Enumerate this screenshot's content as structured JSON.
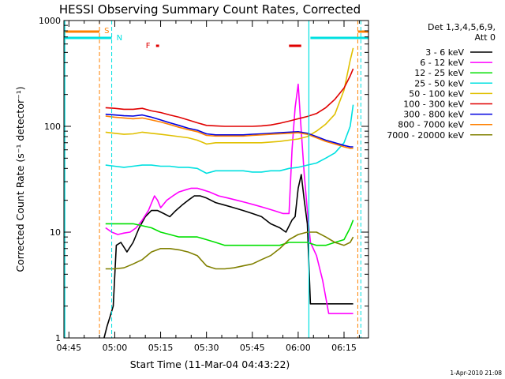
{
  "chart_data": {
    "type": "line",
    "title": "HESSI Observing Summary Count Rates, Corrected",
    "xlabel": "Start Time (11-Mar-04 04:43:22)",
    "ylabel": "Corrected Count Rate (s⁻¹ detector⁻¹)",
    "yscale": "log",
    "xlim": [
      "04:43:22",
      "06:23:00"
    ],
    "ylim": [
      1,
      1000
    ],
    "x_ticks": [
      "04:45",
      "05:00",
      "05:15",
      "05:30",
      "05:45",
      "06:00",
      "06:15"
    ],
    "y_ticks": [
      "1",
      "10",
      "100",
      "1000"
    ],
    "timestamp": "1-Apr-2010 21:08",
    "legend": {
      "placement": "right",
      "header": [
        "Det 1,3,4,5,6,9,",
        "Att 0"
      ]
    },
    "flags": {
      "S_label": "S",
      "N_label": "N",
      "F_label": "F",
      "colors": {
        "S": "#ff8000",
        "N": "#00e0e0",
        "F": "#e00000"
      },
      "S_segments": [
        [
          "04:43:22",
          "04:55:00"
        ],
        [
          "06:19:30",
          "06:23:00"
        ]
      ],
      "N_segments": [
        [
          "04:43:22",
          "04:59:00"
        ],
        [
          "06:04:00",
          "06:23:00"
        ]
      ],
      "F_segments": [
        [
          "05:13:30",
          "05:14:30"
        ],
        [
          "05:57:00",
          "06:01:00"
        ]
      ],
      "S_lines": [
        "04:55:00",
        "06:19:30"
      ],
      "N_lines": [
        "04:59:00",
        "06:20:30"
      ],
      "N_solid_lines": [
        "04:43:40",
        "06:03:30"
      ]
    },
    "series": [
      {
        "name": "3 - 6 keV",
        "color": "#000000",
        "x": [
          "04:56:30",
          "04:57:30",
          "04:58:30",
          "04:59:30",
          "05:00:30",
          "05:02:00",
          "05:04:00",
          "05:06:00",
          "05:08:00",
          "05:10:00",
          "05:12:00",
          "05:14:00",
          "05:16:00",
          "05:18:00",
          "05:20:00",
          "05:22:00",
          "05:24:00",
          "05:26:00",
          "05:28:00",
          "05:30:00",
          "05:33:00",
          "05:36:00",
          "05:39:00",
          "05:42:00",
          "05:45:00",
          "05:48:00",
          "05:51:00",
          "05:54:00",
          "05:56:00",
          "05:58:00",
          "05:59:00",
          "06:00:00",
          "06:01:00",
          "06:02:00",
          "06:03:00",
          "06:04:00",
          "06:06:00",
          "06:08:00",
          "06:10:00",
          "06:12:00",
          "06:14:00",
          "06:16:00",
          "06:17:00",
          "06:18:00"
        ],
        "values": [
          1.0,
          1.3,
          1.6,
          2.0,
          7.5,
          8.0,
          6.5,
          8.0,
          11,
          14,
          16,
          16,
          15,
          14,
          16,
          18,
          20,
          22,
          22,
          21,
          19,
          18,
          17,
          16,
          15,
          14,
          12,
          11,
          10,
          13,
          14,
          26,
          35,
          20,
          12,
          2.1,
          2.1,
          2.1,
          2.1,
          2.1,
          2.1,
          2.1,
          2.1,
          2.1
        ]
      },
      {
        "name": "6 - 12 keV",
        "color": "#ff00ff",
        "x": [
          "04:57:00",
          "04:59:00",
          "05:01:00",
          "05:03:00",
          "05:05:00",
          "05:07:00",
          "05:09:00",
          "05:11:00",
          "05:13:00",
          "05:14:00",
          "05:15:00",
          "05:17:00",
          "05:19:00",
          "05:21:00",
          "05:23:00",
          "05:25:00",
          "05:27:00",
          "05:29:00",
          "05:31:00",
          "05:34:00",
          "05:37:00",
          "05:40:00",
          "05:43:00",
          "05:46:00",
          "05:49:00",
          "05:52:00",
          "05:55:00",
          "05:57:00",
          "05:58:00",
          "05:59:00",
          "06:00:00",
          "06:01:00",
          "06:02:00",
          "06:03:00",
          "06:04:00",
          "06:06:00",
          "06:08:00",
          "06:10:00",
          "06:13:00",
          "06:16:00",
          "06:18:00"
        ],
        "values": [
          11,
          10,
          9.5,
          9.8,
          10,
          11,
          13,
          16,
          22,
          20,
          17,
          20,
          22,
          24,
          25,
          26,
          26,
          25,
          24,
          22,
          21,
          20,
          19,
          18,
          17,
          16,
          15,
          15,
          60,
          150,
          250,
          90,
          35,
          16,
          8,
          6,
          3.5,
          1.7,
          1.7,
          1.7,
          1.7
        ]
      },
      {
        "name": "12 - 25 keV",
        "color": "#00e000",
        "x": [
          "04:57:00",
          "05:00:00",
          "05:03:00",
          "05:06:00",
          "05:09:00",
          "05:12:00",
          "05:15:00",
          "05:18:00",
          "05:21:00",
          "05:24:00",
          "05:27:00",
          "05:30:00",
          "05:33:00",
          "05:36:00",
          "05:39:00",
          "05:42:00",
          "05:45:00",
          "05:48:00",
          "05:51:00",
          "05:54:00",
          "05:57:00",
          "06:00:00",
          "06:03:00",
          "06:06:00",
          "06:09:00",
          "06:12:00",
          "06:15:00",
          "06:17:00",
          "06:18:00"
        ],
        "values": [
          12,
          12,
          12,
          12,
          11.5,
          11,
          10,
          9.5,
          9,
          9,
          9,
          8.5,
          8,
          7.5,
          7.5,
          7.5,
          7.5,
          7.5,
          7.5,
          7.5,
          8,
          8,
          8,
          7.5,
          7.5,
          8,
          8.5,
          11,
          13
        ]
      },
      {
        "name": "25 - 50 keV",
        "color": "#00e0e0",
        "x": [
          "04:57:00",
          "05:00:00",
          "05:03:00",
          "05:06:00",
          "05:09:00",
          "05:12:00",
          "05:15:00",
          "05:18:00",
          "05:21:00",
          "05:24:00",
          "05:27:00",
          "05:30:00",
          "05:33:00",
          "05:36:00",
          "05:39:00",
          "05:42:00",
          "05:45:00",
          "05:48:00",
          "05:51:00",
          "05:54:00",
          "05:57:00",
          "06:00:00",
          "06:03:00",
          "06:06:00",
          "06:09:00",
          "06:12:00",
          "06:15:00",
          "06:17:00",
          "06:18:00"
        ],
        "values": [
          43,
          42,
          41,
          42,
          43,
          43,
          42,
          42,
          41,
          41,
          40,
          36,
          38,
          38,
          38,
          38,
          37,
          37,
          38,
          38,
          40,
          41,
          43,
          45,
          50,
          56,
          70,
          100,
          160
        ]
      },
      {
        "name": "50 - 100 keV",
        "color": "#e0c000",
        "x": [
          "04:57:00",
          "05:00:00",
          "05:03:00",
          "05:06:00",
          "05:09:00",
          "05:12:00",
          "05:15:00",
          "05:18:00",
          "05:21:00",
          "05:24:00",
          "05:27:00",
          "05:30:00",
          "05:33:00",
          "05:36:00",
          "05:39:00",
          "05:42:00",
          "05:45:00",
          "05:48:00",
          "05:51:00",
          "05:54:00",
          "05:57:00",
          "06:00:00",
          "06:03:00",
          "06:06:00",
          "06:09:00",
          "06:12:00",
          "06:15:00",
          "06:17:00",
          "06:18:00"
        ],
        "values": [
          88,
          86,
          84,
          85,
          88,
          86,
          84,
          82,
          80,
          78,
          74,
          68,
          70,
          70,
          70,
          70,
          70,
          70,
          71,
          72,
          74,
          76,
          80,
          90,
          105,
          130,
          220,
          420,
          550
        ]
      },
      {
        "name": "100 - 300 keV",
        "color": "#e00000",
        "x": [
          "04:57:00",
          "05:00:00",
          "05:03:00",
          "05:06:00",
          "05:09:00",
          "05:12:00",
          "05:15:00",
          "05:18:00",
          "05:21:00",
          "05:24:00",
          "05:27:00",
          "05:30:00",
          "05:33:00",
          "05:36:00",
          "05:39:00",
          "05:42:00",
          "05:45:00",
          "05:48:00",
          "05:51:00",
          "05:54:00",
          "05:57:00",
          "06:00:00",
          "06:03:00",
          "06:06:00",
          "06:09:00",
          "06:12:00",
          "06:15:00",
          "06:17:00",
          "06:18:00"
        ],
        "values": [
          150,
          148,
          145,
          145,
          148,
          140,
          135,
          128,
          122,
          115,
          108,
          102,
          101,
          100,
          100,
          100,
          100,
          101,
          103,
          107,
          112,
          118,
          124,
          132,
          150,
          180,
          230,
          300,
          350
        ]
      },
      {
        "name": "300 - 800 keV",
        "color": "#0000e0",
        "x": [
          "04:57:00",
          "05:00:00",
          "05:03:00",
          "05:06:00",
          "05:09:00",
          "05:12:00",
          "05:15:00",
          "05:18:00",
          "05:21:00",
          "05:24:00",
          "05:27:00",
          "05:30:00",
          "05:33:00",
          "05:36:00",
          "05:39:00",
          "05:42:00",
          "05:45:00",
          "05:48:00",
          "05:51:00",
          "05:54:00",
          "05:57:00",
          "06:00:00",
          "06:03:00",
          "06:06:00",
          "06:09:00",
          "06:12:00",
          "06:15:00",
          "06:17:00",
          "06:18:00"
        ],
        "values": [
          130,
          128,
          126,
          125,
          128,
          122,
          115,
          108,
          102,
          96,
          92,
          85,
          83,
          83,
          83,
          83,
          84,
          85,
          86,
          87,
          88,
          89,
          86,
          80,
          74,
          70,
          66,
          64,
          64
        ]
      },
      {
        "name": "800 - 7000 keV",
        "color": "#ff8000",
        "x": [
          "04:57:00",
          "05:00:00",
          "05:03:00",
          "05:06:00",
          "05:09:00",
          "05:12:00",
          "05:15:00",
          "05:18:00",
          "05:21:00",
          "05:24:00",
          "05:27:00",
          "05:30:00",
          "05:33:00",
          "05:36:00",
          "05:39:00",
          "05:42:00",
          "05:45:00",
          "05:48:00",
          "05:51:00",
          "05:54:00",
          "05:57:00",
          "06:00:00",
          "06:03:00",
          "06:06:00",
          "06:09:00",
          "06:12:00",
          "06:15:00",
          "06:17:00",
          "06:18:00"
        ],
        "values": [
          125,
          122,
          120,
          118,
          120,
          115,
          110,
          104,
          98,
          93,
          89,
          82,
          81,
          81,
          81,
          81,
          82,
          83,
          84,
          85,
          86,
          87,
          84,
          78,
          72,
          68,
          64,
          62,
          62
        ]
      },
      {
        "name": "7000 - 20000 keV",
        "color": "#808000",
        "x": [
          "04:57:00",
          "05:00:00",
          "05:03:00",
          "05:06:00",
          "05:09:00",
          "05:12:00",
          "05:15:00",
          "05:18:00",
          "05:21:00",
          "05:24:00",
          "05:27:00",
          "05:30:00",
          "05:33:00",
          "05:36:00",
          "05:39:00",
          "05:42:00",
          "05:45:00",
          "05:48:00",
          "05:51:00",
          "05:54:00",
          "05:57:00",
          "06:00:00",
          "06:03:00",
          "06:06:00",
          "06:09:00",
          "06:12:00",
          "06:15:00",
          "06:17:00",
          "06:18:00"
        ],
        "values": [
          4.5,
          4.5,
          4.6,
          5.0,
          5.5,
          6.5,
          7.0,
          7.0,
          6.8,
          6.5,
          6.0,
          4.8,
          4.5,
          4.5,
          4.6,
          4.8,
          5.0,
          5.5,
          6.0,
          7.0,
          8.5,
          9.5,
          10,
          10,
          9,
          8,
          7.5,
          8,
          9
        ]
      }
    ]
  }
}
